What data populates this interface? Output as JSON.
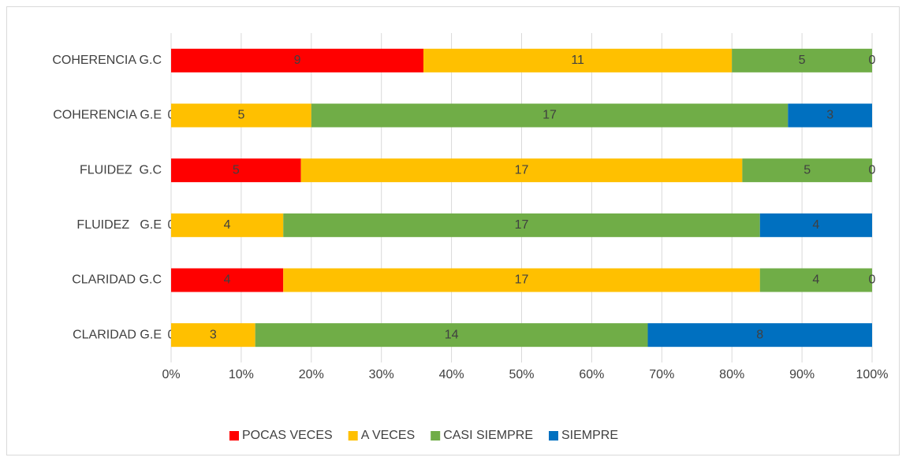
{
  "chart_data": {
    "type": "bar",
    "orientation": "horizontal",
    "stack": "percent",
    "categories": [
      "COHERENCIA G.C",
      "COHERENCIA G.E",
      "FLUIDEZ  G.C",
      "FLUIDEZ   G.E",
      "CLARIDAD G.C",
      "CLARIDAD G.E"
    ],
    "series": [
      {
        "name": "POCAS VECES",
        "color": "#ff0000",
        "values": [
          9,
          0,
          5,
          0,
          4,
          0
        ]
      },
      {
        "name": "A VECES",
        "color": "#ffc000",
        "values": [
          11,
          5,
          17,
          4,
          17,
          3
        ]
      },
      {
        "name": "CASI SIEMPRE",
        "color": "#70ad47",
        "values": [
          5,
          17,
          5,
          17,
          4,
          14
        ]
      },
      {
        "name": "SIEMPRE",
        "color": "#0070c0",
        "values": [
          0,
          3,
          0,
          4,
          0,
          8
        ]
      }
    ],
    "xlim": [
      0,
      100
    ],
    "xticks": [
      {
        "value": 0,
        "label": "0%"
      },
      {
        "value": 10,
        "label": "10%"
      },
      {
        "value": 20,
        "label": "20%"
      },
      {
        "value": 30,
        "label": "30%"
      },
      {
        "value": 40,
        "label": "40%"
      },
      {
        "value": 50,
        "label": "50%"
      },
      {
        "value": 60,
        "label": "60%"
      },
      {
        "value": 70,
        "label": "70%"
      },
      {
        "value": 80,
        "label": "80%"
      },
      {
        "value": 90,
        "label": "90%"
      },
      {
        "value": 100,
        "label": "100%"
      }
    ],
    "grid": true,
    "legend": "bottom"
  }
}
